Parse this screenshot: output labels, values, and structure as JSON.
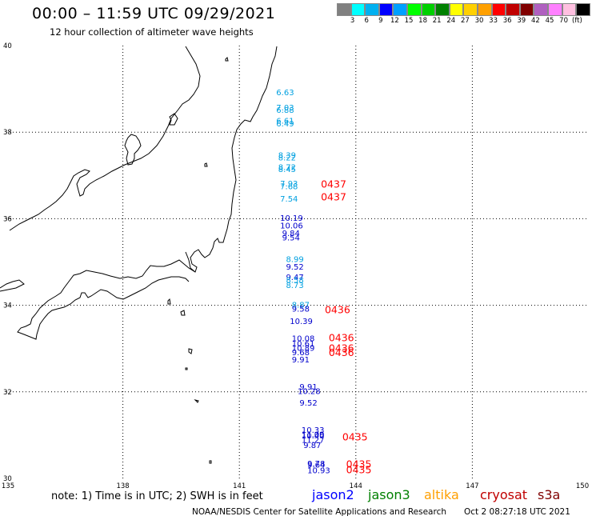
{
  "header": {
    "title": "00:00 – 11:59 UTC 09/29/2021",
    "subtitle": "12 hour collection of altimeter wave heights"
  },
  "legend": {
    "colors": [
      "#808080",
      "#00ffff",
      "#00b0f0",
      "#0000ff",
      "#00a0ff",
      "#00ff00",
      "#00d000",
      "#008000",
      "#ffff00",
      "#ffd000",
      "#ffa000",
      "#ff0000",
      "#c00000",
      "#800000",
      "#b060c0",
      "#ff80ff",
      "#ffc0e0",
      "#000000"
    ],
    "labels": [
      "3",
      "6",
      "9",
      "12",
      "15",
      "18",
      "21",
      "24",
      "27",
      "30",
      "33",
      "36",
      "39",
      "42",
      "45",
      "70"
    ],
    "unit": "(ft)"
  },
  "axes": {
    "x_ticks": [
      "135",
      "138",
      "141",
      "144",
      "147",
      "150"
    ],
    "y_ticks": [
      "40",
      "38",
      "36",
      "34",
      "32",
      "30"
    ]
  },
  "observations": [
    {
      "label": "6.63",
      "lon": 141.95,
      "lat": 38.85,
      "color": "#00a0e0"
    },
    {
      "label": "7.03",
      "lon": 141.95,
      "lat": 38.5,
      "color": "#00a0e0"
    },
    {
      "label": "6.88",
      "lon": 141.95,
      "lat": 38.45,
      "color": "#00a0e0"
    },
    {
      "label": "6.61",
      "lon": 141.95,
      "lat": 38.2,
      "color": "#00a0e0"
    },
    {
      "label": "6.49",
      "lon": 141.95,
      "lat": 38.13,
      "color": "#00a0e0"
    },
    {
      "label": "8.39",
      "lon": 142.0,
      "lat": 37.4,
      "color": "#00a0e0"
    },
    {
      "label": "8.22",
      "lon": 142.0,
      "lat": 37.35,
      "color": "#00a0e0"
    },
    {
      "label": "8.72",
      "lon": 142.0,
      "lat": 37.13,
      "color": "#00a0e0"
    },
    {
      "label": "8.45",
      "lon": 142.0,
      "lat": 37.08,
      "color": "#00a0e0"
    },
    {
      "label": "7.93",
      "lon": 142.05,
      "lat": 36.75,
      "color": "#00a0e0"
    },
    {
      "label": "7.68",
      "lon": 142.05,
      "lat": 36.68,
      "color": "#00a0e0"
    },
    {
      "label": "7.54",
      "lon": 142.05,
      "lat": 36.4,
      "color": "#00a0e0"
    },
    {
      "label": "10.19",
      "lon": 142.05,
      "lat": 35.95,
      "color": "#0000cc"
    },
    {
      "label": "10.06",
      "lon": 142.05,
      "lat": 35.78,
      "color": "#0000cc"
    },
    {
      "label": "9.84",
      "lon": 142.1,
      "lat": 35.6,
      "color": "#0000cc"
    },
    {
      "label": "9.54",
      "lon": 142.1,
      "lat": 35.5,
      "color": "#0000cc"
    },
    {
      "label": "8.99",
      "lon": 142.2,
      "lat": 35.0,
      "color": "#00a0e0"
    },
    {
      "label": "9.52",
      "lon": 142.2,
      "lat": 34.82,
      "color": "#0000cc"
    },
    {
      "label": "9.47",
      "lon": 142.2,
      "lat": 34.58,
      "color": "#0000cc"
    },
    {
      "label": "8.58",
      "lon": 142.2,
      "lat": 34.52,
      "color": "#00a0e0"
    },
    {
      "label": "8.73",
      "lon": 142.2,
      "lat": 34.4,
      "color": "#00a0e0"
    },
    {
      "label": "8.87",
      "lon": 142.35,
      "lat": 33.95,
      "color": "#00a0e0"
    },
    {
      "label": "9.58",
      "lon": 142.35,
      "lat": 33.85,
      "color": "#0000cc"
    },
    {
      "label": "10.39",
      "lon": 142.3,
      "lat": 33.57,
      "color": "#0000cc"
    },
    {
      "label": "10.08",
      "lon": 142.35,
      "lat": 33.17,
      "color": "#0000cc"
    },
    {
      "label": "10.61",
      "lon": 142.35,
      "lat": 33.05,
      "color": "#0000cc"
    },
    {
      "label": "10.89",
      "lon": 142.35,
      "lat": 32.95,
      "color": "#0000cc"
    },
    {
      "label": "9.68",
      "lon": 142.35,
      "lat": 32.85,
      "color": "#0000cc"
    },
    {
      "label": "9.91",
      "lon": 142.35,
      "lat": 32.68,
      "color": "#0000cc"
    },
    {
      "label": "9.91",
      "lon": 142.55,
      "lat": 32.05,
      "color": "#0000cc"
    },
    {
      "label": "10.28",
      "lon": 142.5,
      "lat": 31.95,
      "color": "#0000cc"
    },
    {
      "label": "9.52",
      "lon": 142.55,
      "lat": 31.68,
      "color": "#0000cc"
    },
    {
      "label": "10.33",
      "lon": 142.6,
      "lat": 31.05,
      "color": "#0000cc"
    },
    {
      "label": "11.09",
      "lon": 142.6,
      "lat": 30.95,
      "color": "#0000cc"
    },
    {
      "label": "10.40",
      "lon": 142.6,
      "lat": 30.92,
      "color": "#0000cc"
    },
    {
      "label": "11.27",
      "lon": 142.6,
      "lat": 30.82,
      "color": "#0000cc"
    },
    {
      "label": "9.87",
      "lon": 142.65,
      "lat": 30.7,
      "color": "#0000cc"
    },
    {
      "label": "9.78",
      "lon": 142.75,
      "lat": 30.28,
      "color": "#0000cc"
    },
    {
      "label": "9.64",
      "lon": 142.75,
      "lat": 30.25,
      "color": "#0000cc"
    },
    {
      "label": "10.93",
      "lon": 142.75,
      "lat": 30.12,
      "color": "#0000cc"
    }
  ],
  "passes": [
    {
      "label": "0437",
      "lon": 143.1,
      "lat": 36.72,
      "color": "#ff0000"
    },
    {
      "label": "0437",
      "lon": 143.1,
      "lat": 36.42,
      "color": "#ff0000"
    },
    {
      "label": "0436",
      "lon": 143.2,
      "lat": 33.82,
      "color": "#ff0000"
    },
    {
      "label": "0436",
      "lon": 143.3,
      "lat": 33.17,
      "color": "#ff0000"
    },
    {
      "label": "0436",
      "lon": 143.3,
      "lat": 32.93,
      "color": "#ff0000"
    },
    {
      "label": "0436",
      "lon": 143.3,
      "lat": 32.83,
      "color": "#ff0000"
    },
    {
      "label": "0435",
      "lon": 143.65,
      "lat": 30.88,
      "color": "#ff0000"
    },
    {
      "label": "0435",
      "lon": 143.75,
      "lat": 30.25,
      "color": "#ff0000"
    },
    {
      "label": "0435",
      "lon": 143.75,
      "lat": 30.12,
      "color": "#ff0000"
    }
  ],
  "footer": {
    "note": "note:  1) Time is in UTC;  2) SWH is in feet",
    "satellites": [
      {
        "name": "jason2",
        "color": "#0000ff"
      },
      {
        "name": "jason3",
        "color": "#008000"
      },
      {
        "name": "altika",
        "color": "#ffa000"
      },
      {
        "name": "cryosat",
        "color": "#c00000"
      },
      {
        "name": "s3a",
        "color": "#800000"
      }
    ],
    "credit": "NOAA/NESDIS Center for Satellite Applications and Research",
    "timestamp": "Oct  2 08:27:18 UTC 2021"
  }
}
